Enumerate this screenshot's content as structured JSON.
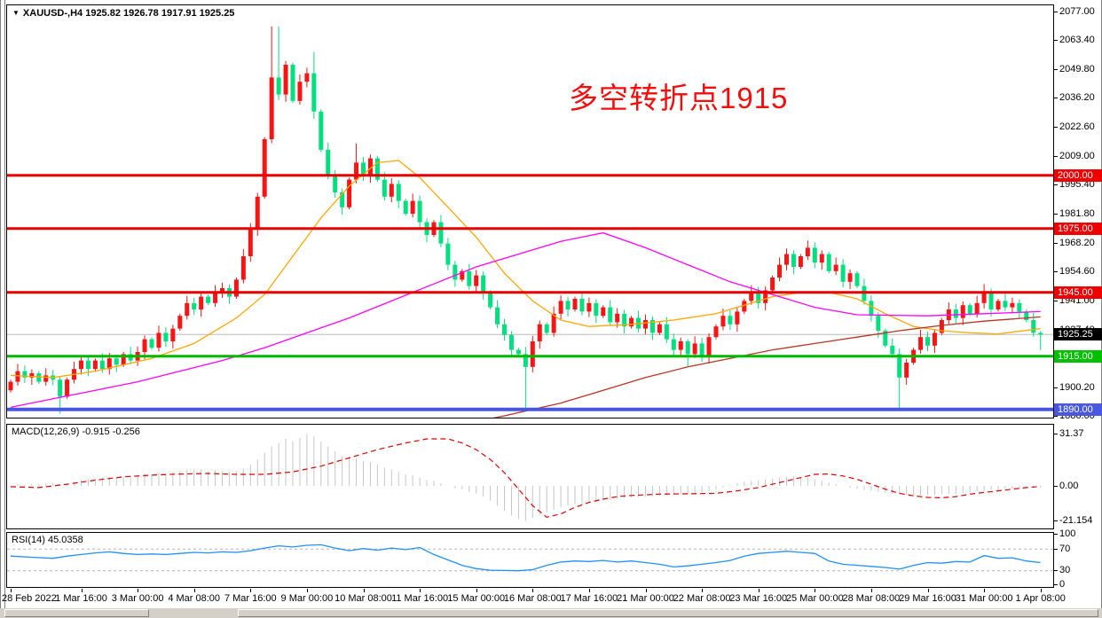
{
  "window": {
    "title": "XAUUSD-,H4 1925.82 1926.78 1917.91 1925.25",
    "symbol": "XAUUSD-",
    "timeframe": "H4",
    "current_bar": {
      "open": "1925.82",
      "high": "1926.78",
      "low": "1917.91",
      "close": "1925.25"
    },
    "dropdown_arrow": "▼"
  },
  "annotation": {
    "text": "多空转折点1915",
    "color": "#f50d0d"
  },
  "colors": {
    "candle_up": "#f71414",
    "candle_down": "#00e07f",
    "bid_line": "#b8b8b8",
    "ma_fast": "#ffa800",
    "ma_mid": "#ff00ff",
    "ma_slow": "#bb3322",
    "macd_bar": "#c6c6c6",
    "macd_signal": "#e00000",
    "rsi_line": "#1e90ff",
    "rsi_level": "#b5b5b5"
  },
  "price_axis": {
    "ticks": [
      "2077.00",
      "2063.40",
      "2049.80",
      "2036.20",
      "2022.60",
      "2009.00",
      "1995.40",
      "1981.80",
      "1968.20",
      "1954.60",
      "1941.00",
      "1927.40",
      "1913.80",
      "1900.20",
      "1886.60"
    ],
    "max": 2077.0,
    "min": 1886.6,
    "step": 13.6
  },
  "hlines": [
    {
      "price": 2000.0,
      "label": "2000.00",
      "color": "#e90000",
      "box": "#f00000",
      "width": 3
    },
    {
      "price": 1975.0,
      "label": "1975.00",
      "color": "#e90000",
      "box": "#f00000",
      "width": 3
    },
    {
      "price": 1945.0,
      "label": "1945.00",
      "color": "#e90000",
      "box": "#f00000",
      "width": 3
    },
    {
      "price": 1915.0,
      "label": "1915.00",
      "color": "#00b800",
      "box": "#00c000",
      "width": 3
    },
    {
      "price": 1890.0,
      "label": "1890.00",
      "color": "#4656dd",
      "box": "#4a57e0",
      "width": 4
    }
  ],
  "bid": {
    "price": 1925.25,
    "label": "1925.25",
    "box": "#000000"
  },
  "chart_data": {
    "type": "candlestick",
    "title": "XAUUSD- H4",
    "bar_count": 147,
    "bars_per_day": 6,
    "first_open": 1899,
    "closes": [
      1903,
      1908,
      1905,
      1907,
      1903,
      1906,
      1904,
      1896,
      1904,
      1909,
      1913,
      1909,
      1913,
      1909,
      1914,
      1911,
      1916,
      1913,
      1917,
      1923,
      1919,
      1926,
      1922,
      1928,
      1934,
      1940,
      1937,
      1943,
      1940,
      1945,
      1947,
      1943,
      1951,
      1962,
      1975,
      1990,
      2017,
      2046,
      2038,
      2052,
      2035,
      2044,
      2048,
      2030,
      2012,
      2000,
      1992,
      1985,
      1998,
      2006,
      2000,
      2008,
      1998,
      1990,
      1996,
      1988,
      1982,
      1988,
      1978,
      1972,
      1978,
      1968,
      1958,
      1951,
      1955,
      1948,
      1953,
      1945,
      1938,
      1930,
      1925,
      1918,
      1916,
      1910,
      1922,
      1930,
      1926,
      1935,
      1941,
      1937,
      1942,
      1936,
      1940,
      1934,
      1938,
      1931,
      1935,
      1929,
      1933,
      1928,
      1932,
      1926,
      1930,
      1923,
      1918,
      1922,
      1916,
      1921,
      1915,
      1924,
      1929,
      1934,
      1930,
      1936,
      1941,
      1945,
      1940,
      1946,
      1952,
      1958,
      1963,
      1957,
      1962,
      1966,
      1959,
      1963,
      1955,
      1958,
      1950,
      1954,
      1948,
      1941,
      1934,
      1927,
      1920,
      1916,
      1905,
      1912,
      1918,
      1924,
      1920,
      1926,
      1932,
      1937,
      1933,
      1939,
      1935,
      1940,
      1945,
      1937,
      1941,
      1938,
      1940,
      1936,
      1932,
      1926,
      1925.25
    ],
    "wick_high_overrides": {
      "37": 2070,
      "38": 2070,
      "43": 2058,
      "49": 2015,
      "138": 1949,
      "146": 1926.78
    },
    "wick_low_overrides": {
      "7": 1888,
      "73": 1890,
      "96": 1910,
      "126": 1890,
      "146": 1917.91
    },
    "moving_averages": [
      {
        "name": "ma-fast-orange",
        "color_key": "ma_fast",
        "points": [
          [
            0,
            1906
          ],
          [
            6,
            1905
          ],
          [
            12,
            1908
          ],
          [
            20,
            1914
          ],
          [
            26,
            1921
          ],
          [
            32,
            1933
          ],
          [
            36,
            1944
          ],
          [
            40,
            1962
          ],
          [
            44,
            1980
          ],
          [
            48,
            1995
          ],
          [
            52,
            2006
          ],
          [
            55,
            2007
          ],
          [
            58,
            1999
          ],
          [
            62,
            1985
          ],
          [
            66,
            1971
          ],
          [
            70,
            1954
          ],
          [
            74,
            1941
          ],
          [
            78,
            1932
          ],
          [
            82,
            1929
          ],
          [
            88,
            1930
          ],
          [
            94,
            1932
          ],
          [
            100,
            1935
          ],
          [
            104,
            1939
          ],
          [
            108,
            1943
          ],
          [
            112,
            1945
          ],
          [
            116,
            1945
          ],
          [
            120,
            1942
          ],
          [
            124,
            1935
          ],
          [
            128,
            1929
          ],
          [
            132,
            1927
          ],
          [
            136,
            1926
          ],
          [
            140,
            1925.5
          ],
          [
            146,
            1928
          ]
        ]
      },
      {
        "name": "ma-mid-magenta",
        "color_key": "ma_mid",
        "points": [
          [
            0,
            1891
          ],
          [
            6,
            1895
          ],
          [
            12,
            1899
          ],
          [
            18,
            1903
          ],
          [
            24,
            1908
          ],
          [
            30,
            1913
          ],
          [
            36,
            1919
          ],
          [
            42,
            1926
          ],
          [
            48,
            1933
          ],
          [
            54,
            1941
          ],
          [
            60,
            1949
          ],
          [
            66,
            1957
          ],
          [
            72,
            1963
          ],
          [
            78,
            1969
          ],
          [
            84,
            1973
          ],
          [
            90,
            1966
          ],
          [
            96,
            1958
          ],
          [
            102,
            1950
          ],
          [
            108,
            1944
          ],
          [
            114,
            1938
          ],
          [
            120,
            1934.5
          ],
          [
            130,
            1934
          ],
          [
            138,
            1935
          ],
          [
            146,
            1936
          ]
        ]
      },
      {
        "name": "ma-slow-darkred",
        "color_key": "ma_slow",
        "points": [
          [
            58,
            1879
          ],
          [
            64,
            1883
          ],
          [
            70,
            1887
          ],
          [
            74,
            1890
          ],
          [
            78,
            1893
          ],
          [
            84,
            1899
          ],
          [
            90,
            1905
          ],
          [
            96,
            1910
          ],
          [
            102,
            1914
          ],
          [
            108,
            1918
          ],
          [
            114,
            1921
          ],
          [
            120,
            1924
          ],
          [
            126,
            1927
          ],
          [
            132,
            1929.5
          ],
          [
            138,
            1931.5
          ],
          [
            142,
            1932.5
          ],
          [
            146,
            1933.5
          ]
        ]
      }
    ],
    "macd": {
      "header": "MACD(12,26,9) -0.915 -0.256",
      "name": "MACD(12,26,9)",
      "main_value": -0.915,
      "signal_value": -0.256,
      "axis": [
        {
          "v": 31.37,
          "t": "31.37"
        },
        {
          "v": 0,
          "t": "0.00"
        },
        {
          "v": -21.154,
          "t": "-21.154"
        }
      ],
      "histogram": [
        0.5,
        0.8,
        0.6,
        1.0,
        1.2,
        1.5,
        1.8,
        1.2,
        1.5,
        2.5,
        3.5,
        4.0,
        4.5,
        5.0,
        5.5,
        5.0,
        5.5,
        6.0,
        6.5,
        7.5,
        7.0,
        8.0,
        7.5,
        8.5,
        9.0,
        10.0,
        9.5,
        10.0,
        9.0,
        9.5,
        9.0,
        8.5,
        9.0,
        10.5,
        13.0,
        16.0,
        20.0,
        24.0,
        26.0,
        28.5,
        27.0,
        29.0,
        31.4,
        30.0,
        27.0,
        24.0,
        21.0,
        18.0,
        17.0,
        16.5,
        15.0,
        14.5,
        13.0,
        11.0,
        10.0,
        8.5,
        7.0,
        6.5,
        5.0,
        3.5,
        3.0,
        1.5,
        0.0,
        -1.5,
        -2.0,
        -3.5,
        -4.5,
        -6.5,
        -9.0,
        -12.0,
        -15.0,
        -18.0,
        -20.0,
        -21.2,
        -19.5,
        -17.5,
        -16.0,
        -14.5,
        -13.0,
        -12.0,
        -11.0,
        -10.5,
        -10.0,
        -9.5,
        -9.0,
        -8.5,
        -8.0,
        -7.5,
        -7.0,
        -6.8,
        -6.5,
        -6.2,
        -6.0,
        -5.8,
        -5.5,
        -5.2,
        -5.0,
        -4.5,
        -4.0,
        -3.0,
        -2.0,
        -1.0,
        0.5,
        1.5,
        2.5,
        3.0,
        3.5,
        4.0,
        4.5,
        5.0,
        5.5,
        5.8,
        5.5,
        5.0,
        4.0,
        3.0,
        2.0,
        1.0,
        0.0,
        -1.0,
        -1.8,
        -2.5,
        -3.0,
        -3.5,
        -4.0,
        -4.5,
        -5.0,
        -5.2,
        -5.5,
        -5.5,
        -5.8,
        -5.5,
        -5.2,
        -5.0,
        -4.8,
        -4.5,
        -4.0,
        -3.5,
        -3.0,
        -2.5,
        -2.2,
        -2.0,
        -1.8,
        -1.5,
        -1.2,
        -1.0,
        -0.9
      ],
      "signal_points": [
        [
          0,
          -0.5
        ],
        [
          4,
          -1
        ],
        [
          8,
          1
        ],
        [
          12,
          3.5
        ],
        [
          16,
          5.5
        ],
        [
          20,
          6.5
        ],
        [
          24,
          7.2
        ],
        [
          28,
          7.5
        ],
        [
          32,
          7
        ],
        [
          36,
          7
        ],
        [
          40,
          8.5
        ],
        [
          44,
          12
        ],
        [
          48,
          17
        ],
        [
          52,
          22
        ],
        [
          56,
          26
        ],
        [
          59,
          28.5
        ],
        [
          62,
          28.5
        ],
        [
          64,
          26
        ],
        [
          66,
          22
        ],
        [
          68,
          16
        ],
        [
          70,
          8
        ],
        [
          72,
          -2
        ],
        [
          74,
          -12
        ],
        [
          76,
          -19
        ],
        [
          78,
          -17
        ],
        [
          80,
          -13
        ],
        [
          82,
          -10
        ],
        [
          84,
          -8
        ],
        [
          86,
          -6.5
        ],
        [
          88,
          -5.8
        ],
        [
          92,
          -5
        ],
        [
          96,
          -4.8
        ],
        [
          100,
          -4.5
        ],
        [
          103,
          -3
        ],
        [
          106,
          -1
        ],
        [
          108,
          1
        ],
        [
          110,
          3
        ],
        [
          112,
          5
        ],
        [
          114,
          7
        ],
        [
          116,
          7.2
        ],
        [
          118,
          6
        ],
        [
          120,
          4
        ],
        [
          122,
          1
        ],
        [
          124,
          -2
        ],
        [
          126,
          -4.5
        ],
        [
          128,
          -6
        ],
        [
          130,
          -7
        ],
        [
          132,
          -7.2
        ],
        [
          134,
          -6.5
        ],
        [
          136,
          -5
        ],
        [
          138,
          -4
        ],
        [
          140,
          -3
        ],
        [
          142,
          -2
        ],
        [
          144,
          -1
        ],
        [
          146,
          -0.3
        ]
      ]
    },
    "rsi": {
      "header": "RSI(14) 45.0358",
      "name": "RSI(14)",
      "value": 45.0358,
      "levels": [
        70,
        30
      ],
      "axis": [
        {
          "v": 100,
          "t": "100"
        },
        {
          "v": 70,
          "t": "70"
        },
        {
          "v": 30,
          "t": "30"
        },
        {
          "v": 0,
          "t": "0"
        }
      ],
      "points": [
        [
          0,
          57
        ],
        [
          3,
          55
        ],
        [
          6,
          53
        ],
        [
          8,
          57
        ],
        [
          10,
          60
        ],
        [
          12,
          63
        ],
        [
          14,
          65
        ],
        [
          16,
          62
        ],
        [
          18,
          60
        ],
        [
          20,
          61
        ],
        [
          22,
          60
        ],
        [
          24,
          62
        ],
        [
          26,
          64
        ],
        [
          28,
          63
        ],
        [
          30,
          65
        ],
        [
          32,
          64
        ],
        [
          34,
          67
        ],
        [
          36,
          72
        ],
        [
          38,
          76
        ],
        [
          40,
          74
        ],
        [
          42,
          77
        ],
        [
          44,
          78
        ],
        [
          46,
          72
        ],
        [
          48,
          67
        ],
        [
          50,
          71
        ],
        [
          52,
          68
        ],
        [
          54,
          72
        ],
        [
          56,
          69
        ],
        [
          58,
          73
        ],
        [
          60,
          60
        ],
        [
          62,
          50
        ],
        [
          63,
          45
        ],
        [
          64,
          40
        ],
        [
          66,
          34
        ],
        [
          68,
          31
        ],
        [
          70,
          30.5
        ],
        [
          72,
          30
        ],
        [
          74,
          32
        ],
        [
          76,
          40
        ],
        [
          78,
          46
        ],
        [
          80,
          48
        ],
        [
          82,
          47
        ],
        [
          84,
          49
        ],
        [
          86,
          46
        ],
        [
          88,
          48
        ],
        [
          90,
          45
        ],
        [
          92,
          42
        ],
        [
          94,
          37
        ],
        [
          96,
          39
        ],
        [
          98,
          42
        ],
        [
          100,
          45
        ],
        [
          102,
          49
        ],
        [
          104,
          57
        ],
        [
          106,
          62
        ],
        [
          108,
          64
        ],
        [
          110,
          66
        ],
        [
          112,
          64
        ],
        [
          114,
          62
        ],
        [
          116,
          48
        ],
        [
          118,
          42
        ],
        [
          120,
          40
        ],
        [
          122,
          38
        ],
        [
          124,
          36
        ],
        [
          126,
          33
        ],
        [
          128,
          40
        ],
        [
          130,
          45
        ],
        [
          132,
          44
        ],
        [
          134,
          47
        ],
        [
          136,
          46
        ],
        [
          138,
          58
        ],
        [
          140,
          53
        ],
        [
          142,
          54
        ],
        [
          144,
          48
        ],
        [
          146,
          45
        ]
      ]
    },
    "time_axis": {
      "labels": [
        {
          "t": "28 Feb 2022",
          "i": 0
        },
        {
          "t": "1 Mar 16:00",
          "i": 10
        },
        {
          "t": "3 Mar 00:00",
          "i": 18
        },
        {
          "t": "4 Mar 08:00",
          "i": 26
        },
        {
          "t": "7 Mar 16:00",
          "i": 34
        },
        {
          "t": "9 Mar 00:00",
          "i": 42
        },
        {
          "t": "10 Mar 08:00",
          "i": 50
        },
        {
          "t": "11 Mar 16:00",
          "i": 58
        },
        {
          "t": "15 Mar 00:00",
          "i": 66
        },
        {
          "t": "16 Mar 08:00",
          "i": 74
        },
        {
          "t": "17 Mar 16:00",
          "i": 82
        },
        {
          "t": "21 Mar 00:00",
          "i": 90
        },
        {
          "t": "22 Mar 08:00",
          "i": 98
        },
        {
          "t": "23 Mar 16:00",
          "i": 106
        },
        {
          "t": "25 Mar 00:00",
          "i": 114
        },
        {
          "t": "28 Mar 08:00",
          "i": 122
        },
        {
          "t": "29 Mar 16:00",
          "i": 130
        },
        {
          "t": "31 Mar 00:00",
          "i": 138
        }
      ],
      "last_label": {
        "t": "1 Apr 08:00",
        "i": 146
      }
    }
  }
}
